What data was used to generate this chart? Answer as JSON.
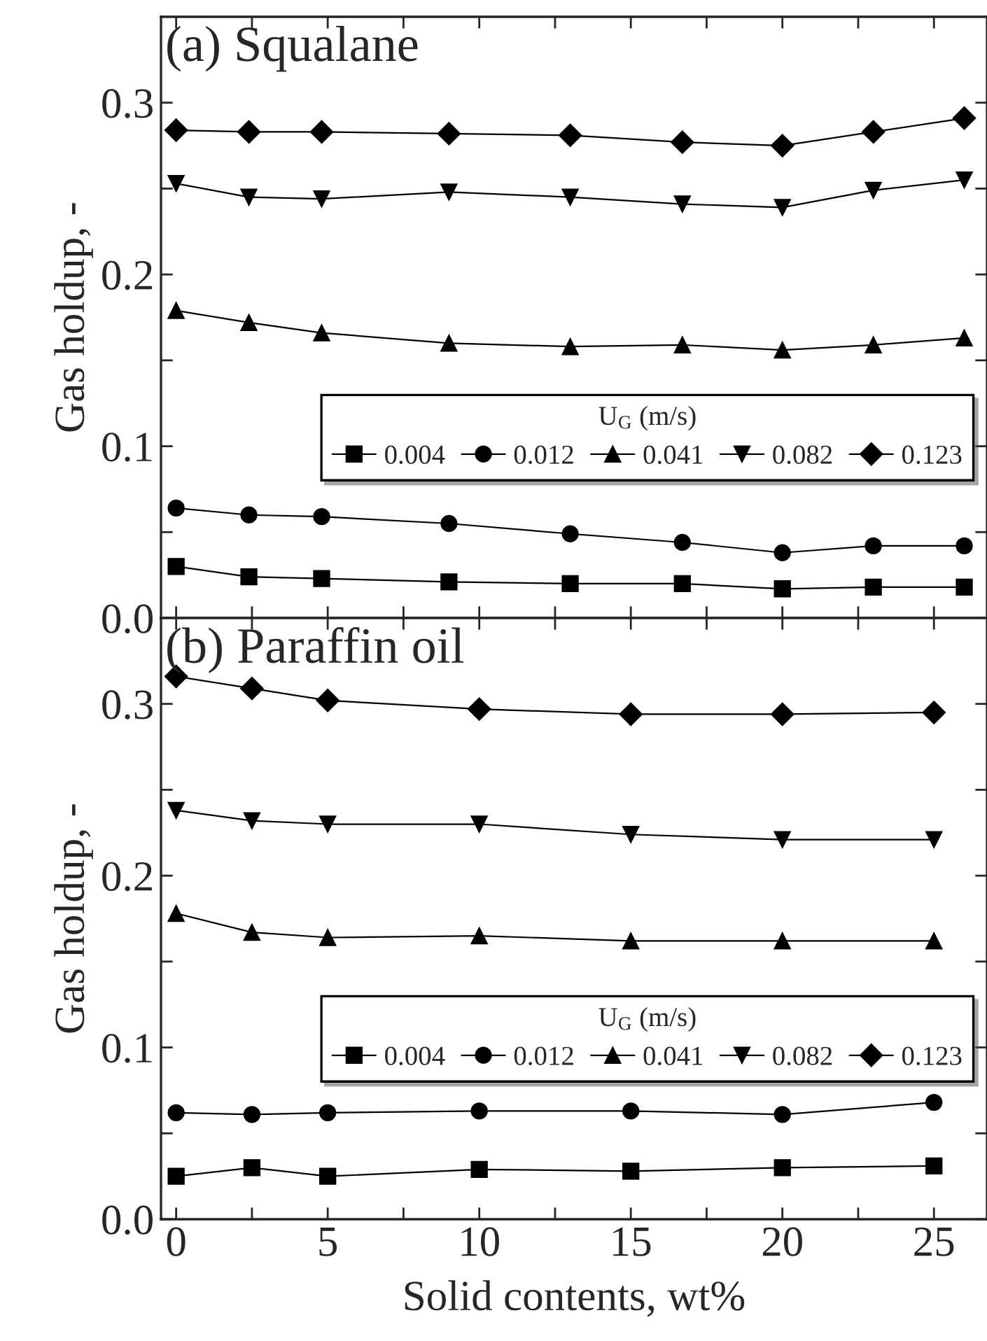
{
  "chart_data": [
    {
      "type": "line",
      "title": "(a) Squalane",
      "ylabel": "Gas holdup, -",
      "legend_title": "U$_{G}$ (m/s)",
      "legend": "right",
      "grid": false,
      "tick_labels": "y",
      "x": [
        0,
        2.4,
        4.8,
        9.0,
        13.0,
        16.7,
        20.0,
        23.0,
        26.0
      ],
      "xlim": [
        -0.5,
        26.75
      ],
      "xticks": [
        0,
        {
          "value": 2.5,
          "label": null
        },
        5,
        {
          "value": 7.5,
          "label": null
        },
        10,
        {
          "value": 12.5,
          "label": null
        },
        15,
        {
          "value": 17.5,
          "label": null
        },
        20,
        {
          "value": 22.5,
          "label": null
        },
        25
      ],
      "ylim": [
        0,
        0.35
      ],
      "yticks": [
        {
          "value": 0,
          "label": "0.0"
        },
        {
          "value": 0.05,
          "label": null
        },
        0.1,
        {
          "value": 0.15,
          "label": null
        },
        0.2,
        {
          "value": 0.25,
          "label": null
        },
        0.3
      ],
      "series": [
        {
          "name": "0.004",
          "color": "#000000",
          "marker": "square",
          "values": [
            0.03,
            0.024,
            0.023,
            0.021,
            0.02,
            0.02,
            0.017,
            0.018,
            0.018
          ]
        },
        {
          "name": "0.012",
          "color": "#000000",
          "marker": "circle",
          "values": [
            0.064,
            0.06,
            0.059,
            0.055,
            0.049,
            0.044,
            0.038,
            0.042,
            0.042
          ]
        },
        {
          "name": "0.041",
          "color": "#000000",
          "marker": "triangle",
          "values": [
            0.179,
            0.172,
            0.166,
            0.16,
            0.158,
            0.159,
            0.156,
            0.159,
            0.163
          ]
        },
        {
          "name": "0.082",
          "color": "#000000",
          "marker": "triangle_down",
          "values": [
            0.253,
            0.245,
            0.244,
            0.248,
            0.245,
            0.241,
            0.239,
            0.249,
            0.255
          ]
        },
        {
          "name": "0.123",
          "color": "#000000",
          "marker": "diamond",
          "values": [
            0.284,
            0.283,
            0.283,
            0.282,
            0.281,
            0.277,
            0.275,
            0.283,
            0.291
          ]
        }
      ]
    },
    {
      "type": "line",
      "title": "(b) Paraffin oil",
      "ylabel": "Gas holdup, -",
      "xlabel": "Solid contents, wt%",
      "legend_title": "U$_{G}$ (m/s)",
      "legend": "right",
      "grid": false,
      "x": [
        0,
        2.5,
        5,
        10,
        15,
        20,
        25
      ],
      "xlim": [
        -0.5,
        26.75
      ],
      "xticks": [
        0,
        {
          "value": 2.5,
          "label": null
        },
        5,
        {
          "value": 7.5,
          "label": null
        },
        10,
        {
          "value": 12.5,
          "label": null
        },
        15,
        {
          "value": 17.5,
          "label": null
        },
        20,
        {
          "value": 22.5,
          "label": null
        },
        25
      ],
      "ylim": [
        0,
        0.35
      ],
      "yticks": [
        {
          "value": 0,
          "label": "0.0"
        },
        {
          "value": 0.05,
          "label": null
        },
        0.1,
        {
          "value": 0.15,
          "label": null
        },
        0.2,
        {
          "value": 0.25,
          "label": null
        },
        0.3
      ],
      "series": [
        {
          "name": "0.004",
          "color": "#000000",
          "marker": "square",
          "values": [
            0.025,
            0.03,
            0.025,
            0.029,
            0.028,
            0.03,
            0.031
          ]
        },
        {
          "name": "0.012",
          "color": "#000000",
          "marker": "circle",
          "values": [
            0.062,
            0.061,
            0.062,
            0.063,
            0.063,
            0.061,
            0.068
          ]
        },
        {
          "name": "0.041",
          "color": "#000000",
          "marker": "triangle",
          "values": [
            0.178,
            0.167,
            0.164,
            0.165,
            0.162,
            0.162,
            0.162
          ]
        },
        {
          "name": "0.082",
          "color": "#000000",
          "marker": "triangle_down",
          "values": [
            0.238,
            0.232,
            0.23,
            0.23,
            0.224,
            0.221,
            0.221
          ]
        },
        {
          "name": "0.123",
          "color": "#000000",
          "marker": "diamond",
          "values": [
            0.316,
            0.309,
            0.302,
            0.297,
            0.294,
            0.294,
            0.295
          ]
        }
      ]
    }
  ]
}
